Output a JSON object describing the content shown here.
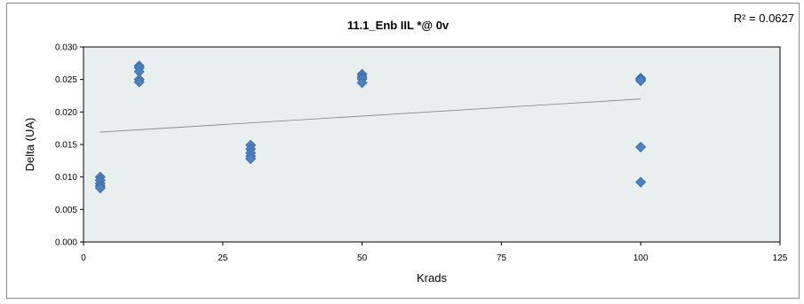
{
  "chart_data": {
    "type": "scatter",
    "title": "11.1_Enb IIL   *@ 0v",
    "xlabel": "Krads",
    "ylabel": "Delta (UA)",
    "r2_label": "R² = 0.0627",
    "xlim": [
      0,
      125
    ],
    "ylim": [
      0,
      0.03
    ],
    "x_ticks": [
      "0",
      "25",
      "50",
      "75",
      "100",
      "125"
    ],
    "y_ticks": [
      "0.000",
      "0.005",
      "0.010",
      "0.015",
      "0.020",
      "0.025",
      "0.030"
    ],
    "series": [
      {
        "points": [
          [
            3,
            0.01
          ],
          [
            3,
            0.0095
          ],
          [
            3,
            0.009
          ],
          [
            3,
            0.0086
          ],
          [
            3,
            0.0083
          ],
          [
            10,
            0.0271
          ],
          [
            10,
            0.0268
          ],
          [
            10,
            0.0262
          ],
          [
            10,
            0.025
          ],
          [
            10,
            0.0246
          ],
          [
            30,
            0.0149
          ],
          [
            30,
            0.0143
          ],
          [
            30,
            0.0137
          ],
          [
            30,
            0.0132
          ],
          [
            30,
            0.0128
          ],
          [
            50,
            0.0258
          ],
          [
            50,
            0.0254
          ],
          [
            50,
            0.0251
          ],
          [
            50,
            0.0245
          ],
          [
            100,
            0.0252
          ],
          [
            100,
            0.025
          ],
          [
            100,
            0.0248
          ],
          [
            100,
            0.0146
          ],
          [
            100,
            0.0092
          ]
        ]
      }
    ],
    "trendline": {
      "x": [
        3,
        100
      ],
      "y": [
        0.0169,
        0.022
      ]
    },
    "colors": {
      "marker": "#4f81bd",
      "marker_edge": "#3a6aa8",
      "plot_bg": "#e9efef",
      "trendline": "#7f7f7f"
    },
    "grid": false
  }
}
